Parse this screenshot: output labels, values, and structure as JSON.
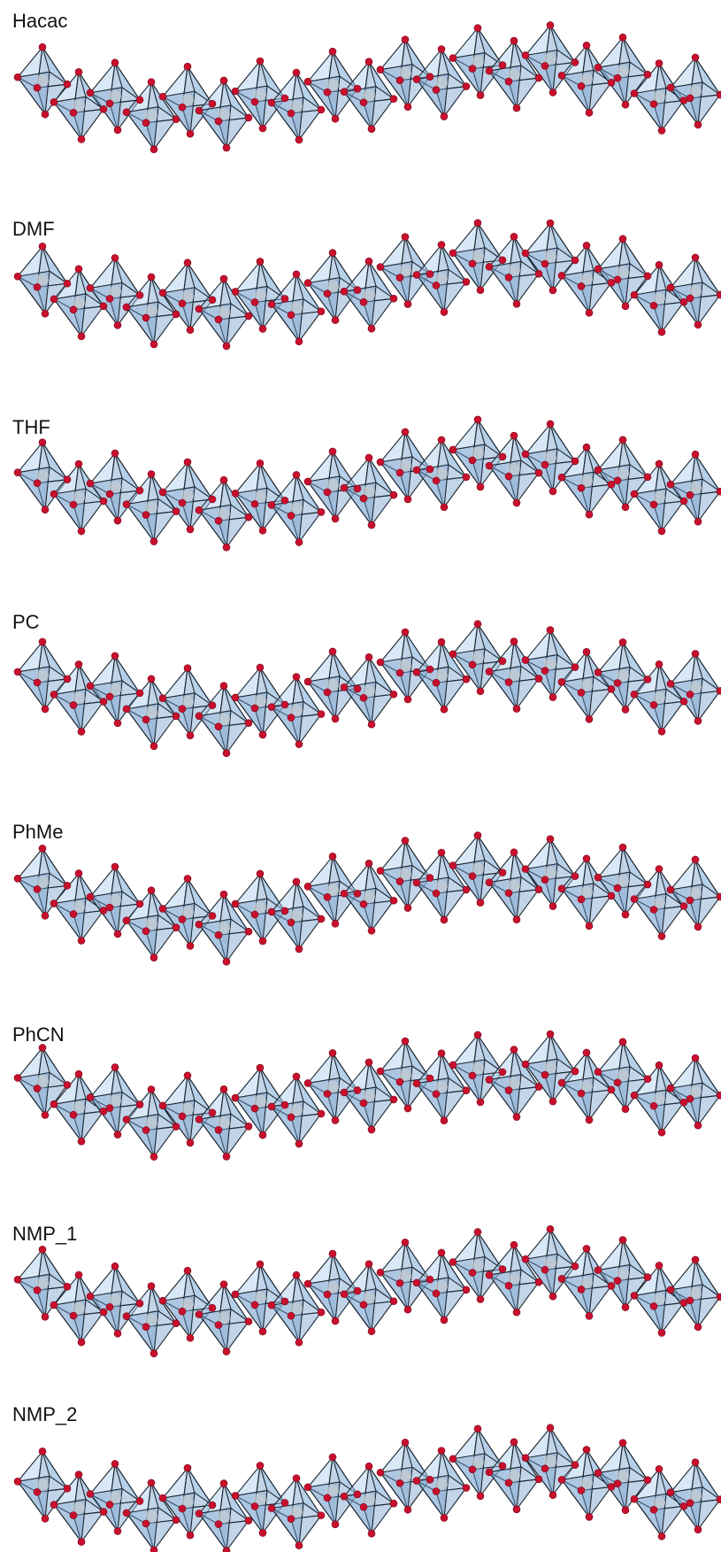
{
  "panels": [
    {
      "label": "Hacac"
    },
    {
      "label": "DMF"
    },
    {
      "label": "THF"
    },
    {
      "label": "PC"
    },
    {
      "label": "PhMe"
    },
    {
      "label": "PhCN"
    },
    {
      "label": "NMP_1"
    },
    {
      "label": "NMP_2"
    }
  ]
}
